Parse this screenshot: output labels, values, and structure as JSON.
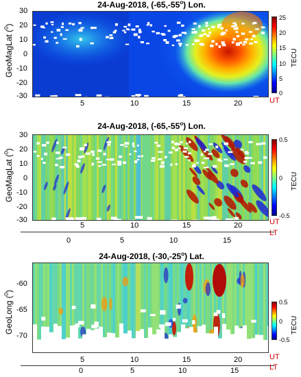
{
  "chart_data": [
    {
      "type": "heatmap",
      "title": "24-Aug-2018, (-65,-55",
      "title_sup": "o",
      "title_suffix": ") Lon.",
      "ylabel": "GeoMagLat (",
      "ylabel_sup": "0",
      "ylabel_end": ")",
      "ylim": [
        -33,
        30
      ],
      "xlim": [
        0.5,
        23
      ],
      "yticks": [
        "30",
        "20",
        "10",
        "0",
        "-10",
        "-20",
        "-30"
      ],
      "xticks": [
        "5",
        "10",
        "15",
        "20"
      ],
      "x_axis_tag": "UT",
      "colorbar": {
        "ticks": [
          "25",
          "20",
          "15",
          "10",
          "5",
          "0"
        ],
        "range": [
          0,
          25
        ],
        "unit": "TECU"
      }
    },
    {
      "type": "heatmap",
      "title": "24-Aug-2018, (-65,-55",
      "title_sup": "o",
      "title_suffix": ") Lon.",
      "ylabel": "GeoMagLat (",
      "ylabel_sup": "0",
      "ylabel_end": ")",
      "ylim": [
        -33,
        30
      ],
      "xlim": [
        0.5,
        23
      ],
      "yticks": [
        "30",
        "20",
        "10",
        "0",
        "-10",
        "-20",
        "-30"
      ],
      "xticks": [
        "5",
        "10",
        "15",
        "20"
      ],
      "x_axis_tag": "UT",
      "lt_ticks": [
        "0",
        "5",
        "10",
        "15"
      ],
      "lt_tag": "LT",
      "colorbar": {
        "ticks": [
          "0.5",
          "0",
          "-0.5"
        ],
        "range": [
          -0.5,
          0.5
        ],
        "unit": "TECU"
      }
    },
    {
      "type": "heatmap",
      "title": "24-Aug-2018, (-30,-25",
      "title_sup": "o",
      "title_suffix": ") Lat.",
      "ylabel": "GeoLong (",
      "ylabel_sup": "0",
      "ylabel_end": ")",
      "ylim": [
        -76,
        -56
      ],
      "xlim": [
        0.5,
        23
      ],
      "yticks": [
        "-60",
        "-65",
        "-70"
      ],
      "xticks": [
        "5",
        "10",
        "15",
        "20"
      ],
      "x_axis_tag": "UT",
      "lt_ticks": [
        "0",
        "5",
        "10",
        "15"
      ],
      "lt_tag": "LT",
      "colorbar": {
        "ticks": [
          "0.5",
          "0",
          "-0.5"
        ],
        "range": [
          -0.5,
          0.5
        ],
        "unit": "TECU"
      }
    }
  ]
}
